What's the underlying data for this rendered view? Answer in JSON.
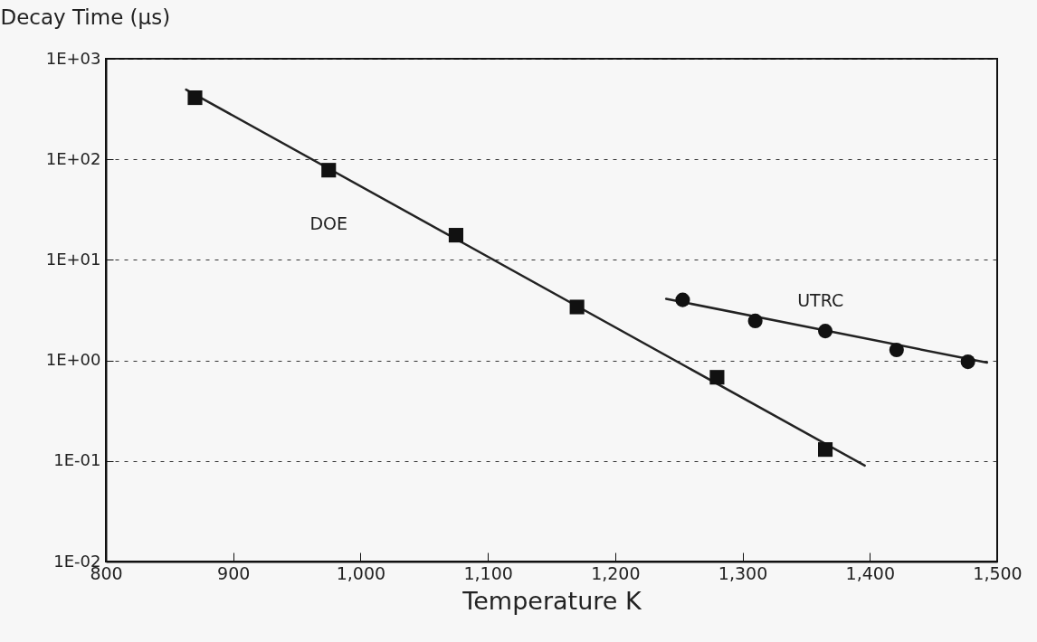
{
  "chart_data": {
    "type": "scatter",
    "xlabel": "Temperature K",
    "ylabel": "Decay Time (μs)",
    "log": "y",
    "grid": "y",
    "legend": false,
    "xlim": [
      800,
      1500
    ],
    "xticks": [
      800,
      900,
      {
        "value": 1000,
        "label": "1,000"
      },
      {
        "value": 1100,
        "label": "1,100"
      },
      {
        "value": 1200,
        "label": "1,200"
      },
      {
        "value": 1300,
        "label": "1,300"
      },
      {
        "value": 1400,
        "label": "1,400"
      },
      {
        "value": 1500,
        "label": "1,500"
      }
    ],
    "ylim": [
      0.01,
      1000
    ],
    "yticks": [
      {
        "value": 0.01,
        "label": "1E-02"
      },
      {
        "value": 0.1,
        "label": "1E-01"
      },
      {
        "value": 1,
        "label": "1E+00"
      },
      {
        "value": 10,
        "label": "1E+01"
      },
      {
        "value": 100,
        "label": "1E+02"
      },
      {
        "value": 1000,
        "label": "1E+03"
      }
    ],
    "series": [
      {
        "type": "line",
        "color": "#222222",
        "x": [
          863,
          1396
        ],
        "values": [
          494,
          0.09
        ]
      },
      {
        "type": "line",
        "color": "#222222",
        "x": [
          1240,
          1492
        ],
        "values": [
          4.1,
          0.95
        ]
      },
      {
        "name": "DOE",
        "marker": "square",
        "color": "#111111",
        "x": [
          870,
          975,
          1075,
          1170,
          1280,
          1365
        ],
        "values": [
          410,
          78,
          17.6,
          3.4,
          0.68,
          0.13
        ]
      },
      {
        "name": "UTRC",
        "marker": "circle",
        "color": "#111111",
        "x": [
          1253,
          1310,
          1365,
          1421,
          1477
        ],
        "values": [
          4.0,
          2.47,
          1.96,
          1.27,
          0.97
        ]
      }
    ]
  }
}
